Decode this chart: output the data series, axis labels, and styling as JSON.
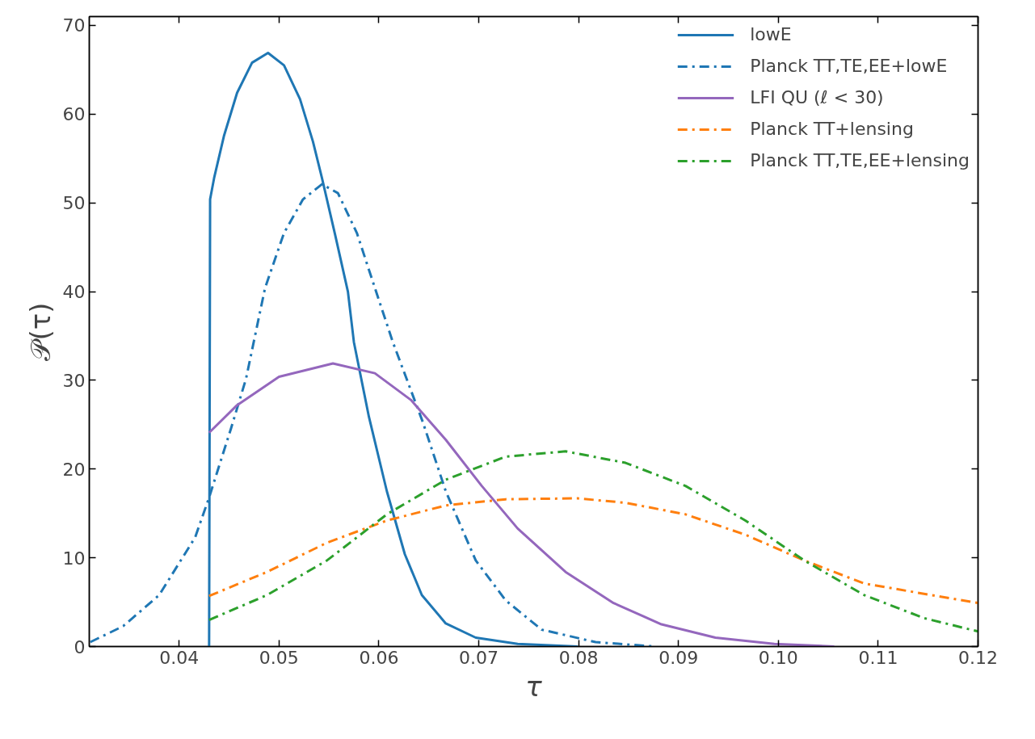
{
  "chart_data": {
    "type": "line",
    "xlabel": "τ",
    "ylabel": "𝒫(τ)",
    "xlim": [
      0.031,
      0.12
    ],
    "ylim": [
      0,
      71
    ],
    "xticks": [
      0.04,
      0.05,
      0.06,
      0.07,
      0.08,
      0.09,
      {
        "value": 0.1,
        "label": "0.10"
      },
      0.11,
      0.12
    ],
    "yticks": [
      0,
      10,
      20,
      30,
      40,
      50,
      60,
      70
    ],
    "grid": false,
    "legend": "top right",
    "series": [
      {
        "name": "lowE",
        "color": "#1f77b4",
        "line_style": "solid",
        "x": [
          0.043,
          0.0431,
          0.0435,
          0.0445,
          0.0458,
          0.0473,
          0.0489,
          0.0505,
          0.0521,
          0.0534,
          0.0543,
          0.0556,
          0.0569,
          0.0575,
          0.059,
          0.0608,
          0.0626,
          0.0643,
          0.0667,
          0.0697,
          0.0739,
          0.0799
        ],
        "values": [
          0,
          50.4,
          52.8,
          57.6,
          62.4,
          65.8,
          66.9,
          65.5,
          61.7,
          56.9,
          52.8,
          46.5,
          40.0,
          34.3,
          25.9,
          17.5,
          10.4,
          5.8,
          2.6,
          1.0,
          0.3,
          0
        ]
      },
      {
        "name": "Planck TT,TE,EE+lowE",
        "color": "#1f77b4",
        "line_style": "dashdot",
        "x": [
          0.0311,
          0.0344,
          0.038,
          0.0416,
          0.043,
          0.0452,
          0.0467,
          0.0486,
          0.0505,
          0.0524,
          0.0543,
          0.0559,
          0.0578,
          0.0594,
          0.0614,
          0.0644,
          0.0667,
          0.0697,
          0.0727,
          0.0763,
          0.0817,
          0.0877
        ],
        "values": [
          0.5,
          2.3,
          5.8,
          12.3,
          16.8,
          24.6,
          30.2,
          40.4,
          46.6,
          50.4,
          52.1,
          51.1,
          46.6,
          41.1,
          34.3,
          25.3,
          17.5,
          9.7,
          5.2,
          1.9,
          0.5,
          0
        ]
      },
      {
        "name": "LFI QU (ℓ < 30)",
        "color": "#9467bd",
        "line_style": "solid",
        "x": [
          0.043,
          0.0458,
          0.05,
          0.0554,
          0.0596,
          0.0632,
          0.0667,
          0.0703,
          0.0739,
          0.0787,
          0.0835,
          0.0883,
          0.0937,
          0.0996,
          0.1056
        ],
        "values": [
          24.1,
          27.2,
          30.4,
          31.9,
          30.8,
          27.8,
          23.3,
          18.1,
          13.3,
          8.4,
          4.9,
          2.5,
          1.0,
          0.3,
          0
        ]
      },
      {
        "name": "Planck TT+lensing",
        "color": "#ff7f0e",
        "line_style": "dashdot",
        "x": [
          0.043,
          0.0488,
          0.0548,
          0.0608,
          0.0667,
          0.0727,
          0.0799,
          0.0847,
          0.0907,
          0.0967,
          0.1026,
          0.1086,
          0.12
        ],
        "values": [
          5.7,
          8.4,
          11.7,
          14.2,
          15.9,
          16.6,
          16.7,
          16.2,
          14.9,
          12.6,
          9.7,
          7.1,
          4.9
        ]
      },
      {
        "name": "Planck TT,TE,EE+lensing",
        "color": "#2ca02c",
        "line_style": "dashdot",
        "x": [
          0.043,
          0.0488,
          0.0548,
          0.0608,
          0.0667,
          0.0727,
          0.0787,
          0.0847,
          0.0907,
          0.0967,
          0.1026,
          0.1086,
          0.1146,
          0.12
        ],
        "values": [
          3.0,
          5.8,
          9.7,
          14.9,
          18.8,
          21.4,
          22.0,
          20.7,
          18.1,
          14.2,
          9.7,
          5.8,
          3.2,
          1.7
        ]
      }
    ]
  }
}
